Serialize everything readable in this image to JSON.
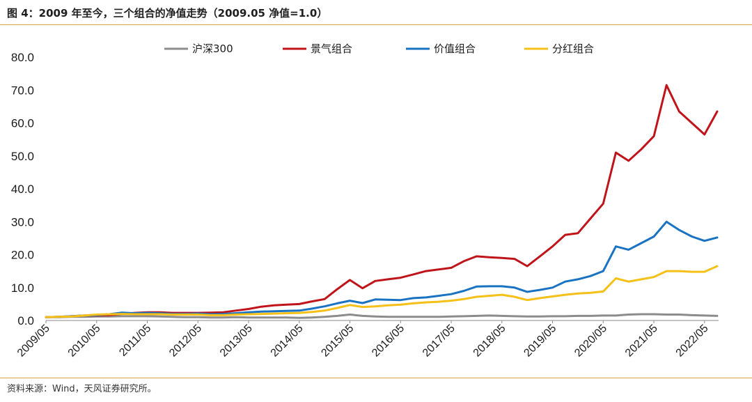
{
  "figure": {
    "title": "图 4：2009 年至今，三个组合的净值走势（2009.05 净值=1.0）",
    "source": "资料来源：Wind，天风证券研究所。"
  },
  "chart_data": {
    "type": "line",
    "title": "",
    "xlabel": "",
    "ylabel": "",
    "ylim": [
      0,
      80
    ],
    "yticks": [
      "0.0",
      "10.0",
      "20.0",
      "30.0",
      "40.0",
      "50.0",
      "60.0",
      "70.0",
      "80.0"
    ],
    "xticks": [
      "2009/05",
      "2010/05",
      "2011/05",
      "2012/05",
      "2013/05",
      "2014/05",
      "2015/05",
      "2016/05",
      "2017/05",
      "2018/05",
      "2019/05",
      "2020/05",
      "2021/05",
      "2022/05"
    ],
    "grid": false,
    "legend": "top",
    "x": [
      "2009/05",
      "2009/08",
      "2009/11",
      "2010/02",
      "2010/05",
      "2010/08",
      "2010/11",
      "2011/02",
      "2011/05",
      "2011/08",
      "2011/11",
      "2012/02",
      "2012/05",
      "2012/08",
      "2012/11",
      "2013/02",
      "2013/05",
      "2013/08",
      "2013/11",
      "2014/02",
      "2014/05",
      "2014/08",
      "2014/11",
      "2015/02",
      "2015/05",
      "2015/08",
      "2015/11",
      "2016/02",
      "2016/05",
      "2016/08",
      "2016/11",
      "2017/02",
      "2017/05",
      "2017/08",
      "2017/11",
      "2018/02",
      "2018/05",
      "2018/08",
      "2018/11",
      "2019/02",
      "2019/05",
      "2019/08",
      "2019/11",
      "2020/02",
      "2020/05",
      "2020/08",
      "2020/11",
      "2021/02",
      "2021/05",
      "2021/08",
      "2021/11",
      "2022/02",
      "2022/05",
      "2022/08"
    ],
    "series": [
      {
        "name": "沪深300",
        "color": "#8c8c8c",
        "values": [
          1.0,
          1.0,
          1.1,
          1.1,
          1.2,
          1.2,
          1.3,
          1.3,
          1.3,
          1.2,
          1.1,
          1.0,
          1.0,
          0.9,
          0.9,
          1.0,
          0.9,
          0.9,
          0.9,
          0.9,
          0.8,
          0.9,
          1.1,
          1.4,
          1.8,
          1.4,
          1.2,
          1.1,
          1.1,
          1.1,
          1.1,
          1.1,
          1.2,
          1.3,
          1.4,
          1.5,
          1.4,
          1.3,
          1.2,
          1.2,
          1.3,
          1.3,
          1.4,
          1.4,
          1.5,
          1.5,
          1.8,
          1.9,
          1.9,
          1.8,
          1.8,
          1.6,
          1.5,
          1.4
        ]
      },
      {
        "name": "景气组合",
        "color": "#c0141b",
        "values": [
          1.0,
          1.1,
          1.3,
          1.5,
          1.5,
          1.6,
          2.0,
          2.3,
          2.5,
          2.5,
          2.3,
          2.3,
          2.3,
          2.4,
          2.5,
          3.0,
          3.5,
          4.2,
          4.6,
          4.8,
          5.0,
          5.8,
          6.5,
          9.5,
          12.3,
          9.8,
          12.0,
          12.5,
          13.0,
          14.0,
          15.0,
          15.5,
          16.0,
          18.0,
          19.5,
          19.2,
          19.0,
          18.7,
          16.5,
          19.5,
          22.5,
          26.0,
          26.5,
          31.0,
          35.5,
          51.0,
          48.5,
          52.0,
          56.0,
          71.5,
          63.5,
          60.0,
          56.5,
          63.5
        ]
      },
      {
        "name": "价值组合",
        "color": "#1a73c2",
        "values": [
          1.0,
          1.1,
          1.3,
          1.5,
          1.6,
          1.9,
          2.4,
          2.2,
          2.3,
          2.2,
          2.0,
          2.0,
          2.1,
          1.9,
          2.0,
          2.2,
          2.5,
          2.7,
          2.8,
          2.9,
          3.0,
          3.6,
          4.3,
          5.2,
          6.0,
          5.3,
          6.4,
          6.3,
          6.2,
          6.8,
          7.0,
          7.5,
          8.0,
          9.0,
          10.3,
          10.4,
          10.4,
          10.0,
          8.7,
          9.3,
          10.0,
          11.8,
          12.5,
          13.5,
          15.0,
          22.5,
          21.5,
          23.5,
          25.5,
          30.0,
          27.5,
          25.5,
          24.2,
          25.2
        ]
      },
      {
        "name": "分红组合",
        "color": "#f5c018",
        "values": [
          1.0,
          1.1,
          1.2,
          1.5,
          1.8,
          1.9,
          2.0,
          1.9,
          1.9,
          1.9,
          1.8,
          1.8,
          1.8,
          1.6,
          1.6,
          1.8,
          1.9,
          2.0,
          2.1,
          2.2,
          2.3,
          2.6,
          3.0,
          3.8,
          4.7,
          4.1,
          4.3,
          4.6,
          4.8,
          5.2,
          5.5,
          5.7,
          6.0,
          6.5,
          7.2,
          7.5,
          7.8,
          7.2,
          6.2,
          6.8,
          7.3,
          7.8,
          8.2,
          8.4,
          8.8,
          12.8,
          11.8,
          12.5,
          13.2,
          15.0,
          15.0,
          14.8,
          14.8,
          16.5
        ]
      }
    ]
  }
}
